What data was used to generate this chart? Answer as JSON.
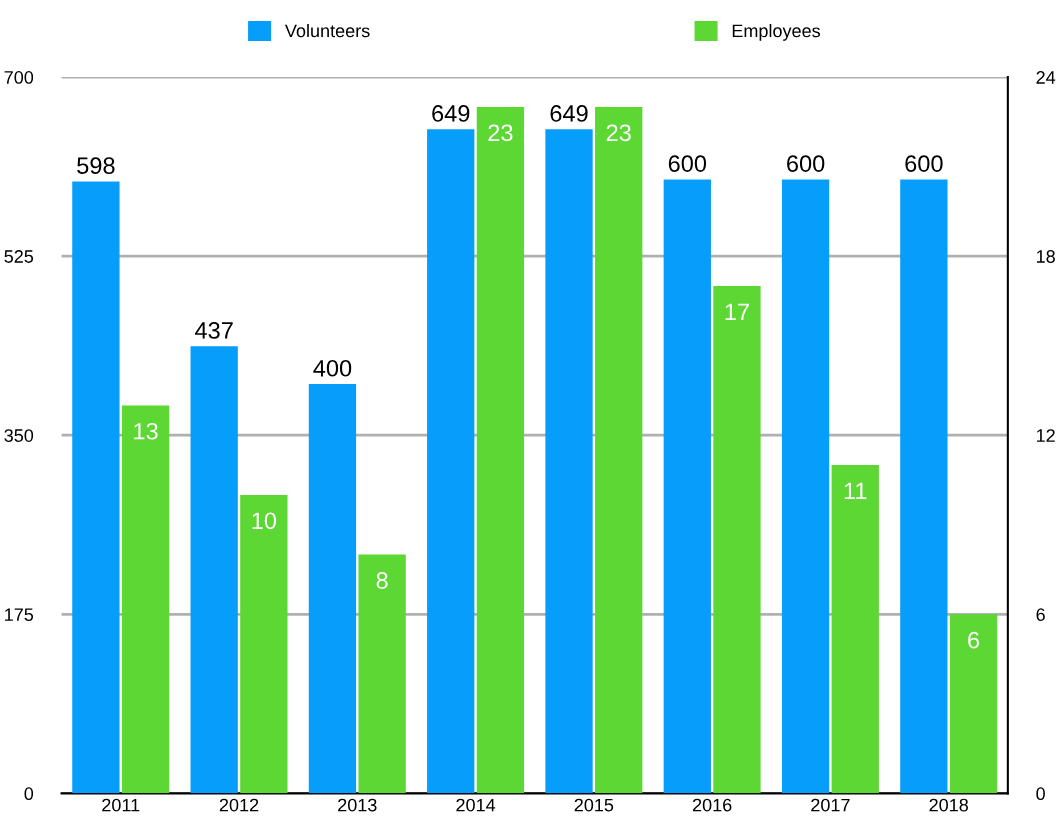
{
  "chart_data": {
    "type": "bar",
    "categories": [
      "2011",
      "2012",
      "2013",
      "2014",
      "2015",
      "2016",
      "2017",
      "2018"
    ],
    "series": [
      {
        "name": "Volunteers",
        "color": "#069dfb",
        "values": [
          598,
          437,
          400,
          649,
          649,
          600,
          600,
          600
        ]
      },
      {
        "name": "Employees",
        "color": "#5dd733",
        "values": [
          13,
          10,
          8,
          23,
          23,
          17,
          11,
          6
        ],
        "axis": "y2"
      }
    ],
    "ylim": [
      0,
      700
    ],
    "yticks": [
      0,
      175,
      350,
      525,
      700
    ],
    "y2lim": [
      0,
      24
    ],
    "y2ticks": [
      0,
      6,
      12,
      18,
      24
    ],
    "grid": "y",
    "legend": "top",
    "data_labels": true
  }
}
